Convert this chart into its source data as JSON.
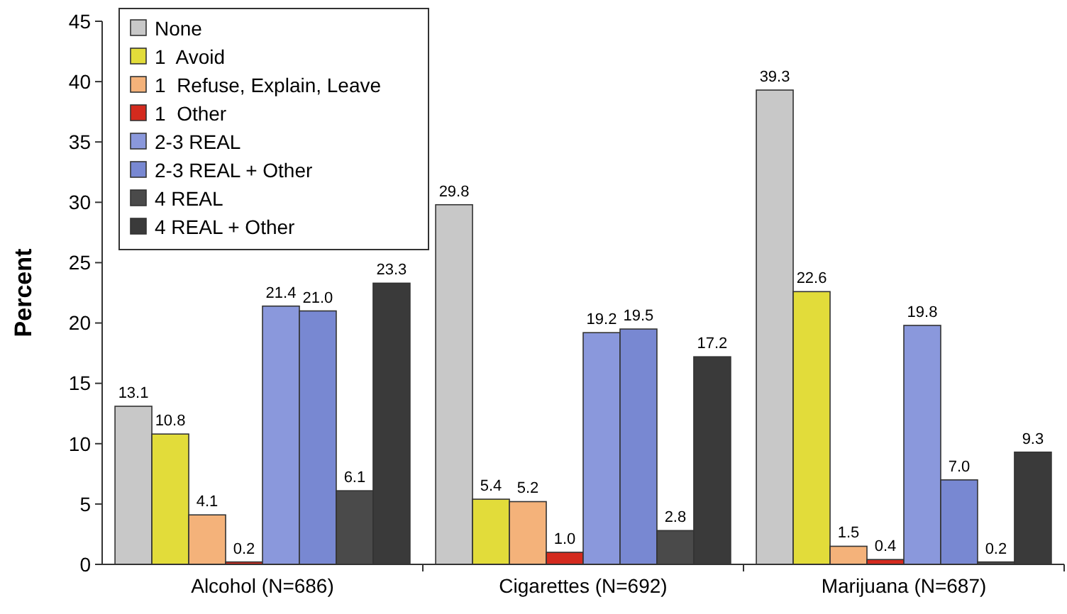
{
  "chart_data": {
    "type": "bar",
    "ylabel": "Percent",
    "categories": [
      "Alcohol (N=686)",
      "Cigarettes (N=692)",
      "Marijuana (N=687)"
    ],
    "series": [
      {
        "name": "None",
        "color": "#c8c8c8",
        "values": [
          13.1,
          29.8,
          39.3
        ],
        "value_labels": [
          "13.1",
          "29.8",
          "39.3"
        ]
      },
      {
        "name": "1  Avoid",
        "color": "#e2dc3a",
        "values": [
          10.8,
          5.4,
          22.6
        ],
        "value_labels": [
          "10.8",
          "5.4",
          "22.6"
        ]
      },
      {
        "name": "1  Refuse, Explain, Leave",
        "color": "#f4b27a",
        "values": [
          4.1,
          5.2,
          1.5
        ],
        "value_labels": [
          "4.1",
          "5.2",
          "1.5"
        ]
      },
      {
        "name": "1  Other",
        "color": "#d42a1e",
        "values": [
          0.2,
          1.0,
          0.4
        ],
        "value_labels": [
          "0.2",
          "1.0",
          "0.4"
        ]
      },
      {
        "name": "2-3 REAL",
        "color": "#8a98dc",
        "values": [
          21.4,
          19.2,
          19.8
        ],
        "value_labels": [
          "21.4",
          "19.2",
          "19.8"
        ]
      },
      {
        "name": "2-3 REAL + Other",
        "color": "#7888d2",
        "values": [
          21.0,
          19.5,
          7.0
        ],
        "value_labels": [
          "21.0",
          "19.5",
          "7.0"
        ]
      },
      {
        "name": "4 REAL",
        "color": "#4a4a4a",
        "values": [
          6.1,
          2.8,
          0.2
        ],
        "value_labels": [
          "6.1",
          "2.8",
          "0.2"
        ]
      },
      {
        "name": "4 REAL + Other",
        "color": "#3a3a3a",
        "values": [
          23.3,
          17.2,
          9.3
        ],
        "value_labels": [
          "23.3",
          "17.2",
          "9.3"
        ]
      }
    ],
    "ylim": [
      0,
      45
    ],
    "yticks": [
      0,
      5,
      10,
      15,
      20,
      25,
      30,
      35,
      40,
      45
    ],
    "legend": "top left"
  }
}
